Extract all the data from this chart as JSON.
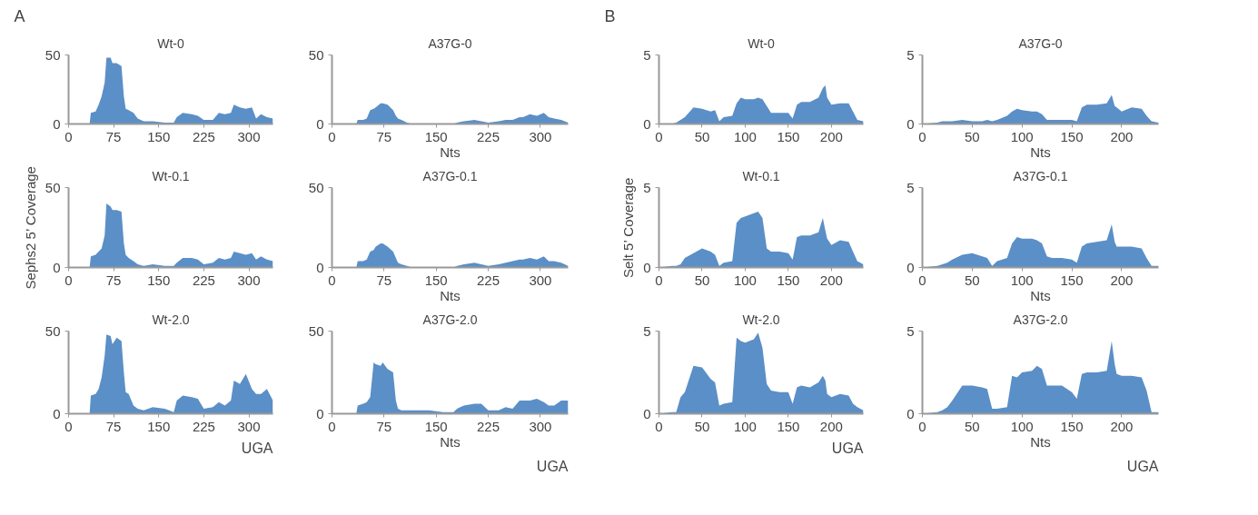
{
  "chart_data": [
    {
      "type": "area",
      "title": "Wt-0",
      "annotations": [
        "A"
      ],
      "x": [
        0,
        35,
        37,
        45,
        50,
        55,
        60,
        63,
        70,
        73,
        80,
        88,
        92,
        95,
        100,
        108,
        115,
        125,
        140,
        160,
        175,
        180,
        190,
        205,
        215,
        225,
        240,
        250,
        260,
        270,
        275,
        285,
        295,
        305,
        312,
        320,
        330,
        340
      ],
      "values": [
        0,
        0,
        8,
        9,
        14,
        20,
        30,
        48,
        48,
        44,
        44,
        42,
        20,
        11,
        10,
        8,
        4,
        2,
        2,
        1,
        1,
        5,
        8,
        7,
        6,
        3,
        3,
        8,
        7,
        8,
        14,
        12,
        11,
        12,
        4,
        7,
        5,
        4
      ],
      "color": "#5b8fc7",
      "xlim": [
        0,
        340
      ],
      "ylim": [
        0,
        50
      ],
      "xticks": [
        0,
        75,
        150,
        225,
        300
      ],
      "yticks": [
        0,
        50
      ]
    },
    {
      "type": "area",
      "title": "A37G-0",
      "xlabel": "Nts",
      "x": [
        0,
        35,
        37,
        45,
        50,
        55,
        60,
        63,
        70,
        73,
        80,
        88,
        92,
        95,
        100,
        108,
        115,
        125,
        140,
        160,
        175,
        180,
        190,
        205,
        215,
        225,
        240,
        250,
        260,
        270,
        275,
        285,
        295,
        305,
        312,
        320,
        330,
        340
      ],
      "values": [
        0,
        0,
        3,
        3,
        4,
        10,
        11,
        12,
        15,
        15,
        14,
        10,
        6,
        4,
        3,
        1,
        0,
        0,
        0,
        0,
        0,
        1,
        2,
        3,
        2,
        1,
        2,
        3,
        3,
        5,
        5,
        7,
        6,
        8,
        5,
        4,
        3,
        1
      ],
      "color": "#5b8fc7",
      "xlim": [
        0,
        340
      ],
      "ylim": [
        0,
        50
      ],
      "xticks": [
        0,
        75,
        150,
        225,
        300
      ],
      "yticks": [
        0,
        50
      ]
    },
    {
      "type": "area",
      "title": "Wt-0",
      "annotations": [
        "B"
      ],
      "x": [
        0,
        15,
        20,
        25,
        30,
        40,
        50,
        60,
        65,
        70,
        75,
        85,
        90,
        95,
        100,
        110,
        115,
        120,
        125,
        130,
        140,
        150,
        155,
        160,
        165,
        175,
        185,
        190,
        193,
        195,
        200,
        210,
        220,
        225,
        230,
        237
      ],
      "values": [
        0,
        0,
        0.1,
        0.3,
        0.5,
        1.2,
        1.1,
        0.9,
        1.0,
        0.2,
        0.5,
        0.6,
        1.5,
        1.9,
        1.8,
        1.8,
        1.9,
        1.8,
        1.3,
        0.8,
        0.8,
        0.8,
        0.4,
        1.4,
        1.6,
        1.6,
        1.9,
        2.6,
        2.8,
        1.9,
        1.4,
        1.5,
        1.5,
        0.9,
        0.3,
        0.2
      ],
      "color": "#5b8fc7",
      "xlim": [
        0,
        237
      ],
      "ylim": [
        0,
        5
      ],
      "xticks": [
        0,
        50,
        100,
        150,
        200
      ],
      "yticks": [
        0,
        5
      ]
    },
    {
      "type": "area",
      "title": "A37G-0",
      "xlabel": "Nts",
      "x": [
        0,
        15,
        20,
        25,
        30,
        40,
        50,
        60,
        65,
        70,
        75,
        85,
        90,
        95,
        100,
        110,
        115,
        120,
        125,
        130,
        140,
        150,
        155,
        160,
        165,
        175,
        185,
        190,
        193,
        195,
        200,
        210,
        220,
        225,
        230,
        237
      ],
      "values": [
        0,
        0.1,
        0.2,
        0.2,
        0.2,
        0.3,
        0.2,
        0.2,
        0.3,
        0.2,
        0.3,
        0.6,
        0.9,
        1.1,
        1.0,
        0.9,
        0.9,
        0.7,
        0.3,
        0.3,
        0.3,
        0.3,
        0.2,
        1.2,
        1.4,
        1.4,
        1.5,
        2.1,
        1.3,
        1.2,
        0.9,
        1.2,
        1.1,
        0.6,
        0.2,
        0.1
      ],
      "color": "#5b8fc7",
      "xlim": [
        0,
        237
      ],
      "ylim": [
        0,
        5
      ],
      "xticks": [
        0,
        50,
        100,
        150,
        200
      ],
      "yticks": [
        0,
        5
      ]
    },
    {
      "type": "area",
      "title": "Wt-0.1",
      "ylabel": "Sephs2 5’ Coverage",
      "x": [
        0,
        35,
        37,
        45,
        50,
        55,
        60,
        63,
        70,
        73,
        80,
        88,
        92,
        95,
        100,
        108,
        115,
        125,
        140,
        160,
        175,
        180,
        190,
        205,
        215,
        225,
        240,
        250,
        260,
        270,
        275,
        285,
        295,
        305,
        312,
        320,
        330,
        340
      ],
      "values": [
        0,
        0,
        7,
        8,
        10,
        12,
        20,
        40,
        38,
        36,
        36,
        35,
        15,
        8,
        6,
        4,
        2,
        1,
        2,
        1,
        1,
        3,
        6,
        6,
        5,
        2,
        3,
        6,
        5,
        6,
        10,
        9,
        8,
        9,
        5,
        7,
        5,
        4
      ],
      "color": "#5b8fc7",
      "xlim": [
        0,
        340
      ],
      "ylim": [
        0,
        50
      ],
      "xticks": [
        0,
        75,
        150,
        225,
        300
      ],
      "yticks": [
        0,
        50
      ]
    },
    {
      "type": "area",
      "title": "A37G-0.1",
      "xlabel": "Nts",
      "x": [
        0,
        35,
        37,
        45,
        50,
        55,
        60,
        63,
        70,
        73,
        80,
        88,
        92,
        95,
        100,
        108,
        115,
        125,
        140,
        160,
        175,
        180,
        190,
        205,
        215,
        225,
        240,
        250,
        260,
        270,
        275,
        285,
        295,
        305,
        312,
        320,
        330,
        340
      ],
      "values": [
        0,
        0,
        4,
        4,
        5,
        10,
        11,
        13,
        15,
        15,
        13,
        10,
        6,
        3,
        2,
        1,
        0,
        0,
        0,
        0,
        0,
        1,
        2,
        3,
        2,
        1,
        2,
        3,
        4,
        5,
        5,
        6,
        5,
        7,
        4,
        4,
        3,
        1
      ],
      "color": "#5b8fc7",
      "xlim": [
        0,
        340
      ],
      "ylim": [
        0,
        50
      ],
      "xticks": [
        0,
        75,
        150,
        225,
        300
      ],
      "yticks": [
        0,
        50
      ]
    },
    {
      "type": "area",
      "title": "Wt-0.1",
      "ylabel": "Selt 5’ Coverage",
      "x": [
        0,
        15,
        20,
        25,
        30,
        40,
        50,
        60,
        65,
        70,
        75,
        85,
        90,
        95,
        100,
        110,
        115,
        120,
        125,
        130,
        140,
        150,
        155,
        160,
        165,
        175,
        185,
        190,
        193,
        195,
        200,
        210,
        220,
        225,
        230,
        237
      ],
      "values": [
        0,
        0.1,
        0.1,
        0.2,
        0.6,
        0.9,
        1.2,
        1.0,
        0.8,
        0.1,
        0.3,
        0.4,
        2.8,
        3.1,
        3.2,
        3.4,
        3.5,
        3.1,
        1.2,
        1.0,
        1.0,
        0.9,
        0.5,
        1.9,
        2.0,
        2.0,
        2.2,
        3.1,
        2.3,
        1.8,
        1.4,
        1.7,
        1.6,
        1.0,
        0.4,
        0.2
      ],
      "color": "#5b8fc7",
      "xlim": [
        0,
        237
      ],
      "ylim": [
        0,
        5
      ],
      "xticks": [
        0,
        50,
        100,
        150,
        200
      ],
      "yticks": [
        0,
        5
      ]
    },
    {
      "type": "area",
      "title": "A37G-0.1",
      "xlabel": "Nts",
      "x": [
        0,
        15,
        20,
        25,
        30,
        40,
        50,
        60,
        65,
        70,
        75,
        85,
        90,
        95,
        100,
        110,
        115,
        120,
        125,
        130,
        140,
        150,
        155,
        160,
        165,
        175,
        185,
        190,
        193,
        195,
        200,
        210,
        220,
        225,
        230,
        237
      ],
      "values": [
        0,
        0.1,
        0.2,
        0.3,
        0.5,
        0.8,
        0.9,
        0.7,
        0.6,
        0.1,
        0.4,
        0.6,
        1.5,
        1.9,
        1.8,
        1.8,
        1.7,
        1.5,
        0.7,
        0.6,
        0.6,
        0.5,
        0.3,
        1.3,
        1.5,
        1.6,
        1.7,
        2.7,
        1.6,
        1.3,
        1.3,
        1.3,
        1.2,
        0.6,
        0.1,
        0.1
      ],
      "color": "#5b8fc7",
      "xlim": [
        0,
        237
      ],
      "ylim": [
        0,
        5
      ],
      "xticks": [
        0,
        50,
        100,
        150,
        200
      ],
      "yticks": [
        0,
        5
      ]
    },
    {
      "type": "area",
      "title": "Wt-2.0",
      "annotations": [
        "UGA"
      ],
      "x": [
        0,
        35,
        37,
        45,
        50,
        55,
        60,
        63,
        70,
        73,
        80,
        88,
        92,
        95,
        100,
        108,
        115,
        125,
        140,
        160,
        175,
        180,
        190,
        205,
        215,
        225,
        240,
        250,
        260,
        270,
        275,
        285,
        295,
        305,
        312,
        320,
        330,
        340
      ],
      "values": [
        0,
        0,
        11,
        12,
        15,
        22,
        35,
        48,
        47,
        42,
        46,
        44,
        25,
        13,
        12,
        5,
        3,
        2,
        4,
        3,
        1,
        8,
        11,
        10,
        9,
        3,
        4,
        7,
        5,
        8,
        20,
        18,
        24,
        15,
        12,
        12,
        15,
        8
      ],
      "color": "#5b8fc7",
      "xlim": [
        0,
        340
      ],
      "ylim": [
        0,
        50
      ],
      "xticks": [
        0,
        75,
        150,
        225,
        300
      ],
      "yticks": [
        0,
        50
      ]
    },
    {
      "type": "area",
      "title": "A37G-2.0",
      "xlabel": "Nts",
      "annotations": [
        "UGA"
      ],
      "x": [
        0,
        35,
        37,
        45,
        50,
        55,
        60,
        63,
        70,
        73,
        80,
        88,
        92,
        95,
        100,
        108,
        115,
        125,
        140,
        160,
        175,
        180,
        190,
        205,
        215,
        225,
        240,
        250,
        260,
        270,
        275,
        285,
        295,
        305,
        312,
        320,
        330,
        340
      ],
      "values": [
        0,
        0,
        5,
        6,
        7,
        10,
        31,
        30,
        29,
        31,
        27,
        25,
        8,
        3,
        2,
        2,
        2,
        2,
        2,
        1,
        1,
        3,
        5,
        6,
        6,
        2,
        2,
        4,
        3,
        8,
        8,
        8,
        9,
        7,
        5,
        5,
        8,
        8
      ],
      "color": "#5b8fc7",
      "xlim": [
        0,
        340
      ],
      "ylim": [
        0,
        50
      ],
      "xticks": [
        0,
        75,
        150,
        225,
        300
      ],
      "yticks": [
        0,
        50
      ]
    },
    {
      "type": "area",
      "title": "Wt-2.0",
      "annotations": [
        "UGA"
      ],
      "x": [
        0,
        15,
        20,
        25,
        30,
        40,
        50,
        60,
        65,
        70,
        75,
        85,
        90,
        95,
        100,
        110,
        115,
        120,
        125,
        130,
        140,
        150,
        155,
        160,
        165,
        175,
        185,
        190,
        193,
        195,
        200,
        210,
        220,
        225,
        230,
        237
      ],
      "values": [
        0,
        0.1,
        0.1,
        1.0,
        1.3,
        2.9,
        2.8,
        2.1,
        1.9,
        0.5,
        0.6,
        0.7,
        4.6,
        4.4,
        4.3,
        4.5,
        4.9,
        4.0,
        1.8,
        1.4,
        1.3,
        1.3,
        0.6,
        1.6,
        1.7,
        1.6,
        1.9,
        2.3,
        2.0,
        1.2,
        1.0,
        1.2,
        1.1,
        0.6,
        0.4,
        0.2
      ],
      "color": "#5b8fc7",
      "xlim": [
        0,
        237
      ],
      "ylim": [
        0,
        5
      ],
      "xticks": [
        0,
        50,
        100,
        150,
        200
      ],
      "yticks": [
        0,
        5
      ]
    },
    {
      "type": "area",
      "title": "A37G-2.0",
      "xlabel": "Nts",
      "annotations": [
        "UGA"
      ],
      "x": [
        0,
        15,
        20,
        25,
        30,
        40,
        50,
        60,
        65,
        70,
        75,
        85,
        90,
        95,
        100,
        110,
        115,
        120,
        125,
        130,
        140,
        150,
        155,
        160,
        165,
        175,
        185,
        190,
        193,
        195,
        200,
        210,
        220,
        225,
        230,
        237
      ],
      "values": [
        0,
        0.1,
        0.2,
        0.4,
        0.8,
        1.7,
        1.7,
        1.6,
        1.5,
        0.3,
        0.3,
        0.4,
        2.3,
        2.2,
        2.5,
        2.6,
        2.9,
        2.7,
        1.7,
        1.7,
        1.7,
        1.3,
        0.9,
        2.4,
        2.5,
        2.5,
        2.6,
        4.4,
        3.0,
        2.4,
        2.3,
        2.3,
        2.2,
        1.4,
        0.1,
        0.1
      ],
      "color": "#5b8fc7",
      "xlim": [
        0,
        237
      ],
      "ylim": [
        0,
        5
      ],
      "xticks": [
        0,
        50,
        100,
        150,
        200
      ],
      "yticks": [
        0,
        5
      ]
    }
  ]
}
